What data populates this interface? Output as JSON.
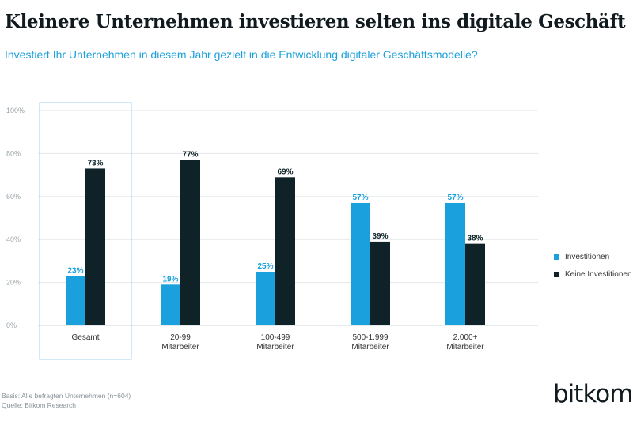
{
  "header": {
    "title": "Kleinere Unternehmen investieren selten ins digitale Geschäft",
    "subtitle": "Investiert Ihr Unternehmen in diesem Jahr gezielt in die Entwicklung digitaler Geschäftsmodelle?"
  },
  "chart_data": {
    "type": "bar",
    "categories": [
      [
        "Gesamt"
      ],
      [
        "20-99",
        "Mitarbeiter"
      ],
      [
        "100-499",
        "Mitarbeiter"
      ],
      [
        "500-1.999",
        "Mitarbeiter"
      ],
      [
        "2.000+",
        "Mitarbeiter"
      ]
    ],
    "series": [
      {
        "name": "Investitionen",
        "values": [
          23,
          19,
          25,
          57,
          57
        ],
        "labels": [
          "23%",
          "19%",
          "25%",
          "57%",
          "57%"
        ],
        "color": "#1aa0dc"
      },
      {
        "name": "Keine Investitionen",
        "values": [
          73,
          77,
          69,
          39,
          38
        ],
        "labels": [
          "73%",
          "77%",
          "69%",
          "39%",
          "38%"
        ],
        "color": "#0e2227"
      }
    ],
    "yticks": [
      0,
      20,
      40,
      60,
      80,
      100
    ],
    "ytick_labels": [
      "0%",
      "20%",
      "40%",
      "60%",
      "80%",
      "100%"
    ],
    "ylim": [
      0,
      100
    ],
    "highlighted_category": "Gesamt",
    "grid": true,
    "legend_position": "right"
  },
  "footnote": {
    "basis": "Basis: Alle befragten Unternehmen (n=604)",
    "source": "Quelle: Bitkom Research"
  },
  "logo": {
    "text": "bitkom"
  },
  "colors": {
    "accent": "#1aa0dc",
    "dark": "#0e2227",
    "grid": "#e3e7e9",
    "highlight_box": "#9fd3ee"
  }
}
